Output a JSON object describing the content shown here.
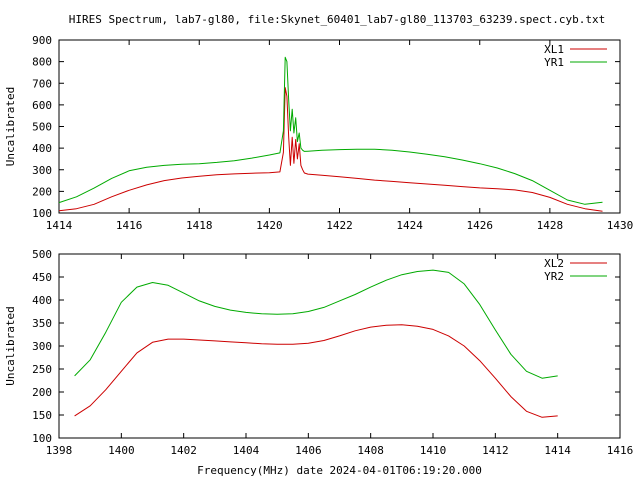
{
  "title": "HIRES Spectrum, lab7-gl80, file:Skynet_60401_lab7-gl80_113703_63239.spect.cyb.txt",
  "colors": {
    "red": "#cc0000",
    "green": "#00aa00",
    "frame": "#000000"
  },
  "chart_data": [
    {
      "type": "line",
      "xlabel": "",
      "ylabel": "Uncalibrated",
      "xlim": [
        1414,
        1430
      ],
      "ylim": [
        100,
        900
      ],
      "xticks": [
        "1414",
        "1416",
        "1418",
        "1420",
        "1422",
        "1424",
        "1426",
        "1428",
        "1430"
      ],
      "yticks": [
        "100",
        "200",
        "300",
        "400",
        "500",
        "600",
        "700",
        "800",
        "900"
      ],
      "legend_position": "top-right",
      "series": [
        {
          "name": "XL1",
          "color": "#cc0000",
          "x": [
            1414.0,
            1414.5,
            1415.0,
            1415.5,
            1416.0,
            1416.5,
            1417.0,
            1417.5,
            1418.0,
            1418.5,
            1419.0,
            1419.5,
            1420.0,
            1420.3,
            1420.4,
            1420.45,
            1420.5,
            1420.55,
            1420.6,
            1420.65,
            1420.7,
            1420.75,
            1420.8,
            1420.85,
            1420.9,
            1420.95,
            1421.0,
            1421.1,
            1421.5,
            1422.0,
            1422.5,
            1423.0,
            1423.5,
            1424.0,
            1424.5,
            1425.0,
            1425.5,
            1426.0,
            1426.5,
            1427.0,
            1427.5,
            1428.0,
            1428.5,
            1429.0,
            1429.5
          ],
          "y": [
            110,
            120,
            140,
            175,
            205,
            230,
            250,
            262,
            270,
            277,
            281,
            284,
            286,
            290,
            380,
            680,
            640,
            450,
            320,
            450,
            330,
            440,
            350,
            420,
            320,
            300,
            285,
            280,
            275,
            268,
            260,
            252,
            246,
            240,
            234,
            228,
            222,
            216,
            212,
            207,
            195,
            172,
            140,
            120,
            108
          ]
        },
        {
          "name": "YR1",
          "color": "#00aa00",
          "x": [
            1414.0,
            1414.5,
            1415.0,
            1415.5,
            1416.0,
            1416.5,
            1417.0,
            1417.5,
            1418.0,
            1418.5,
            1419.0,
            1419.5,
            1420.0,
            1420.3,
            1420.4,
            1420.45,
            1420.5,
            1420.55,
            1420.6,
            1420.65,
            1420.7,
            1420.75,
            1420.8,
            1420.85,
            1420.9,
            1420.95,
            1421.0,
            1421.1,
            1421.5,
            1422.0,
            1422.5,
            1423.0,
            1423.5,
            1424.0,
            1424.5,
            1425.0,
            1425.5,
            1426.0,
            1426.5,
            1427.0,
            1427.5,
            1428.0,
            1428.5,
            1429.0,
            1429.5
          ],
          "y": [
            148,
            175,
            215,
            260,
            295,
            312,
            320,
            325,
            328,
            334,
            342,
            354,
            368,
            378,
            480,
            820,
            800,
            620,
            480,
            580,
            470,
            540,
            430,
            470,
            400,
            390,
            385,
            386,
            390,
            393,
            395,
            395,
            390,
            382,
            372,
            360,
            345,
            328,
            308,
            282,
            250,
            205,
            160,
            140,
            150
          ]
        }
      ]
    },
    {
      "type": "line",
      "xlabel": "Frequency(MHz) date 2024-04-01T06:19:20.000",
      "ylabel": "Uncalibrated",
      "xlim": [
        1398,
        1416
      ],
      "ylim": [
        100,
        500
      ],
      "xticks": [
        "1398",
        "1400",
        "1402",
        "1404",
        "1406",
        "1408",
        "1410",
        "1412",
        "1414",
        "1416"
      ],
      "yticks": [
        "100",
        "150",
        "200",
        "250",
        "300",
        "350",
        "400",
        "450",
        "500"
      ],
      "legend_position": "top-right",
      "series": [
        {
          "name": "XL2",
          "color": "#cc0000",
          "x": [
            1398.5,
            1399.0,
            1399.5,
            1400.0,
            1400.5,
            1401.0,
            1401.5,
            1402.0,
            1402.5,
            1403.0,
            1403.5,
            1404.0,
            1404.5,
            1405.0,
            1405.5,
            1406.0,
            1406.5,
            1407.0,
            1407.5,
            1408.0,
            1408.5,
            1409.0,
            1409.5,
            1410.0,
            1410.5,
            1411.0,
            1411.5,
            1412.0,
            1412.5,
            1413.0,
            1413.5,
            1414.0
          ],
          "y": [
            148,
            170,
            205,
            245,
            285,
            308,
            315,
            315,
            313,
            311,
            309,
            307,
            305,
            304,
            304,
            306,
            312,
            322,
            333,
            341,
            345,
            346,
            343,
            336,
            322,
            300,
            268,
            230,
            190,
            158,
            145,
            148
          ]
        },
        {
          "name": "YR2",
          "color": "#00aa00",
          "x": [
            1398.5,
            1399.0,
            1399.5,
            1400.0,
            1400.5,
            1401.0,
            1401.5,
            1402.0,
            1402.5,
            1403.0,
            1403.5,
            1404.0,
            1404.5,
            1405.0,
            1405.5,
            1406.0,
            1406.5,
            1407.0,
            1407.5,
            1408.0,
            1408.5,
            1409.0,
            1409.5,
            1410.0,
            1410.5,
            1411.0,
            1411.5,
            1412.0,
            1412.5,
            1413.0,
            1413.5,
            1414.0
          ],
          "y": [
            235,
            270,
            330,
            395,
            428,
            438,
            432,
            415,
            398,
            386,
            378,
            373,
            370,
            369,
            370,
            375,
            384,
            398,
            412,
            428,
            443,
            455,
            462,
            465,
            460,
            435,
            390,
            335,
            282,
            245,
            230,
            235
          ]
        }
      ]
    }
  ]
}
